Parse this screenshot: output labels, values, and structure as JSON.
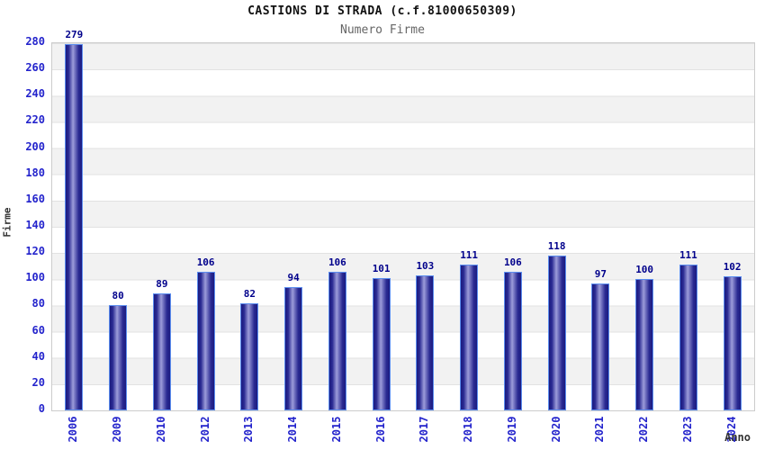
{
  "chart_data": {
    "type": "bar",
    "title": "CASTIONS DI STRADA (c.f.81000650309)",
    "subtitle": "Numero Firme",
    "xlabel": "Anno",
    "ylabel": "Firme",
    "categories": [
      "2006",
      "2009",
      "2010",
      "2012",
      "2013",
      "2014",
      "2015",
      "2016",
      "2017",
      "2018",
      "2019",
      "2020",
      "2021",
      "2022",
      "2023",
      "2024"
    ],
    "values": [
      279,
      80,
      89,
      106,
      82,
      94,
      106,
      101,
      103,
      111,
      106,
      118,
      97,
      100,
      111,
      102
    ],
    "ylim": [
      0,
      280
    ],
    "y_tick_step": 20,
    "grid": "horizontal-bands-alternating",
    "legend": "none",
    "colors": {
      "bar_edge_dark": "#1b1b80",
      "bar_mid": "#2a2a92",
      "bar_center_light": "#9c9cda",
      "bar_border": "#5b8def",
      "tick_label": "#2323cc",
      "value_label": "#00008b",
      "band_gray": "#f2f2f2",
      "band_white": "#ffffff",
      "grid_line": "#e2e2e2",
      "plot_border": "#cccccc",
      "title_color": "#111111",
      "subtitle_color": "#666666",
      "axis_title_color": "#333333"
    }
  }
}
